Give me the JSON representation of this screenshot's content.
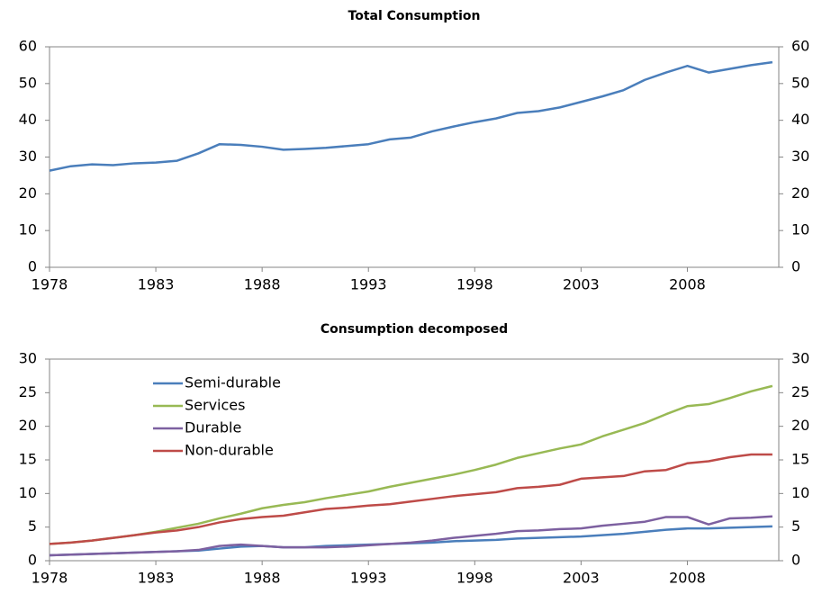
{
  "chart_data": [
    {
      "type": "line",
      "title": "Total Consumption",
      "x": [
        1978,
        1979,
        1980,
        1981,
        1982,
        1983,
        1984,
        1985,
        1986,
        1987,
        1988,
        1989,
        1990,
        1991,
        1992,
        1993,
        1994,
        1995,
        1996,
        1997,
        1998,
        1999,
        2000,
        2001,
        2002,
        2003,
        2004,
        2005,
        2006,
        2007,
        2008,
        2009,
        2010,
        2011,
        2012
      ],
      "series": [
        {
          "name": "Total Consumption",
          "color": "#4a7ebb",
          "values": [
            26.3,
            27.5,
            28,
            27.8,
            28.3,
            28.5,
            29,
            31,
            33.5,
            33.3,
            32.8,
            32,
            32.2,
            32.5,
            33,
            33.5,
            34.8,
            35.3,
            37,
            38.3,
            39.5,
            40.5,
            42,
            42.5,
            43.5,
            45,
            46.5,
            48.2,
            51,
            53,
            54.8,
            53,
            54,
            55,
            55.8
          ]
        }
      ],
      "xlim": [
        1978,
        2012.3
      ],
      "xticks": [
        1978,
        1983,
        1988,
        1993,
        1998,
        2003,
        2008
      ],
      "ylim": [
        0,
        60
      ],
      "yticks": [
        0,
        10,
        20,
        30,
        40,
        50,
        60
      ],
      "mirror_y_axis": true,
      "legend": false
    },
    {
      "type": "line",
      "title": "Consumption decomposed",
      "x": [
        1978,
        1979,
        1980,
        1981,
        1982,
        1983,
        1984,
        1985,
        1986,
        1987,
        1988,
        1989,
        1990,
        1991,
        1992,
        1993,
        1994,
        1995,
        1996,
        1997,
        1998,
        1999,
        2000,
        2001,
        2002,
        2003,
        2004,
        2005,
        2006,
        2007,
        2008,
        2009,
        2010,
        2011,
        2012
      ],
      "series": [
        {
          "name": "Semi-durable",
          "color": "#4a7ebb",
          "values": [
            0.8,
            0.9,
            1.0,
            1.1,
            1.2,
            1.3,
            1.4,
            1.5,
            1.8,
            2.1,
            2.2,
            2.0,
            2.0,
            2.2,
            2.3,
            2.4,
            2.5,
            2.6,
            2.7,
            2.9,
            3.0,
            3.1,
            3.3,
            3.4,
            3.5,
            3.6,
            3.8,
            4.0,
            4.3,
            4.6,
            4.8,
            4.8,
            4.9,
            5.0,
            5.1
          ]
        },
        {
          "name": "Services",
          "color": "#98b954",
          "values": [
            2.5,
            2.7,
            3.0,
            3.4,
            3.8,
            4.3,
            4.9,
            5.5,
            6.3,
            7.0,
            7.8,
            8.3,
            8.7,
            9.3,
            9.8,
            10.3,
            11.0,
            11.6,
            12.2,
            12.8,
            13.5,
            14.3,
            15.3,
            16.0,
            16.7,
            17.3,
            18.5,
            19.5,
            20.5,
            21.8,
            23.0,
            23.3,
            24.2,
            25.2,
            26.0
          ]
        },
        {
          "name": "Durable",
          "color": "#7d60a0",
          "values": [
            0.8,
            0.9,
            1.0,
            1.1,
            1.2,
            1.3,
            1.4,
            1.6,
            2.2,
            2.4,
            2.2,
            2.0,
            2.0,
            2.0,
            2.1,
            2.3,
            2.5,
            2.7,
            3.0,
            3.4,
            3.7,
            4.0,
            4.4,
            4.5,
            4.7,
            4.8,
            5.2,
            5.5,
            5.8,
            6.5,
            6.5,
            5.4,
            6.3,
            6.4,
            6.6
          ]
        },
        {
          "name": "Non-durable",
          "color": "#be4b48",
          "values": [
            2.5,
            2.7,
            3.0,
            3.4,
            3.8,
            4.2,
            4.5,
            5.0,
            5.7,
            6.2,
            6.5,
            6.7,
            7.2,
            7.7,
            7.9,
            8.2,
            8.4,
            8.8,
            9.2,
            9.6,
            9.9,
            10.2,
            10.8,
            11.0,
            11.3,
            12.2,
            12.4,
            12.6,
            13.3,
            13.5,
            14.5,
            14.8,
            15.4,
            15.8,
            15.8
          ]
        }
      ],
      "xlim": [
        1978,
        2012.3
      ],
      "xticks": [
        1978,
        1983,
        1988,
        1993,
        1998,
        2003,
        2008
      ],
      "ylim": [
        0,
        30
      ],
      "yticks": [
        0,
        5,
        10,
        15,
        20,
        25,
        30
      ],
      "mirror_y_axis": true,
      "legend": "upper left"
    }
  ]
}
